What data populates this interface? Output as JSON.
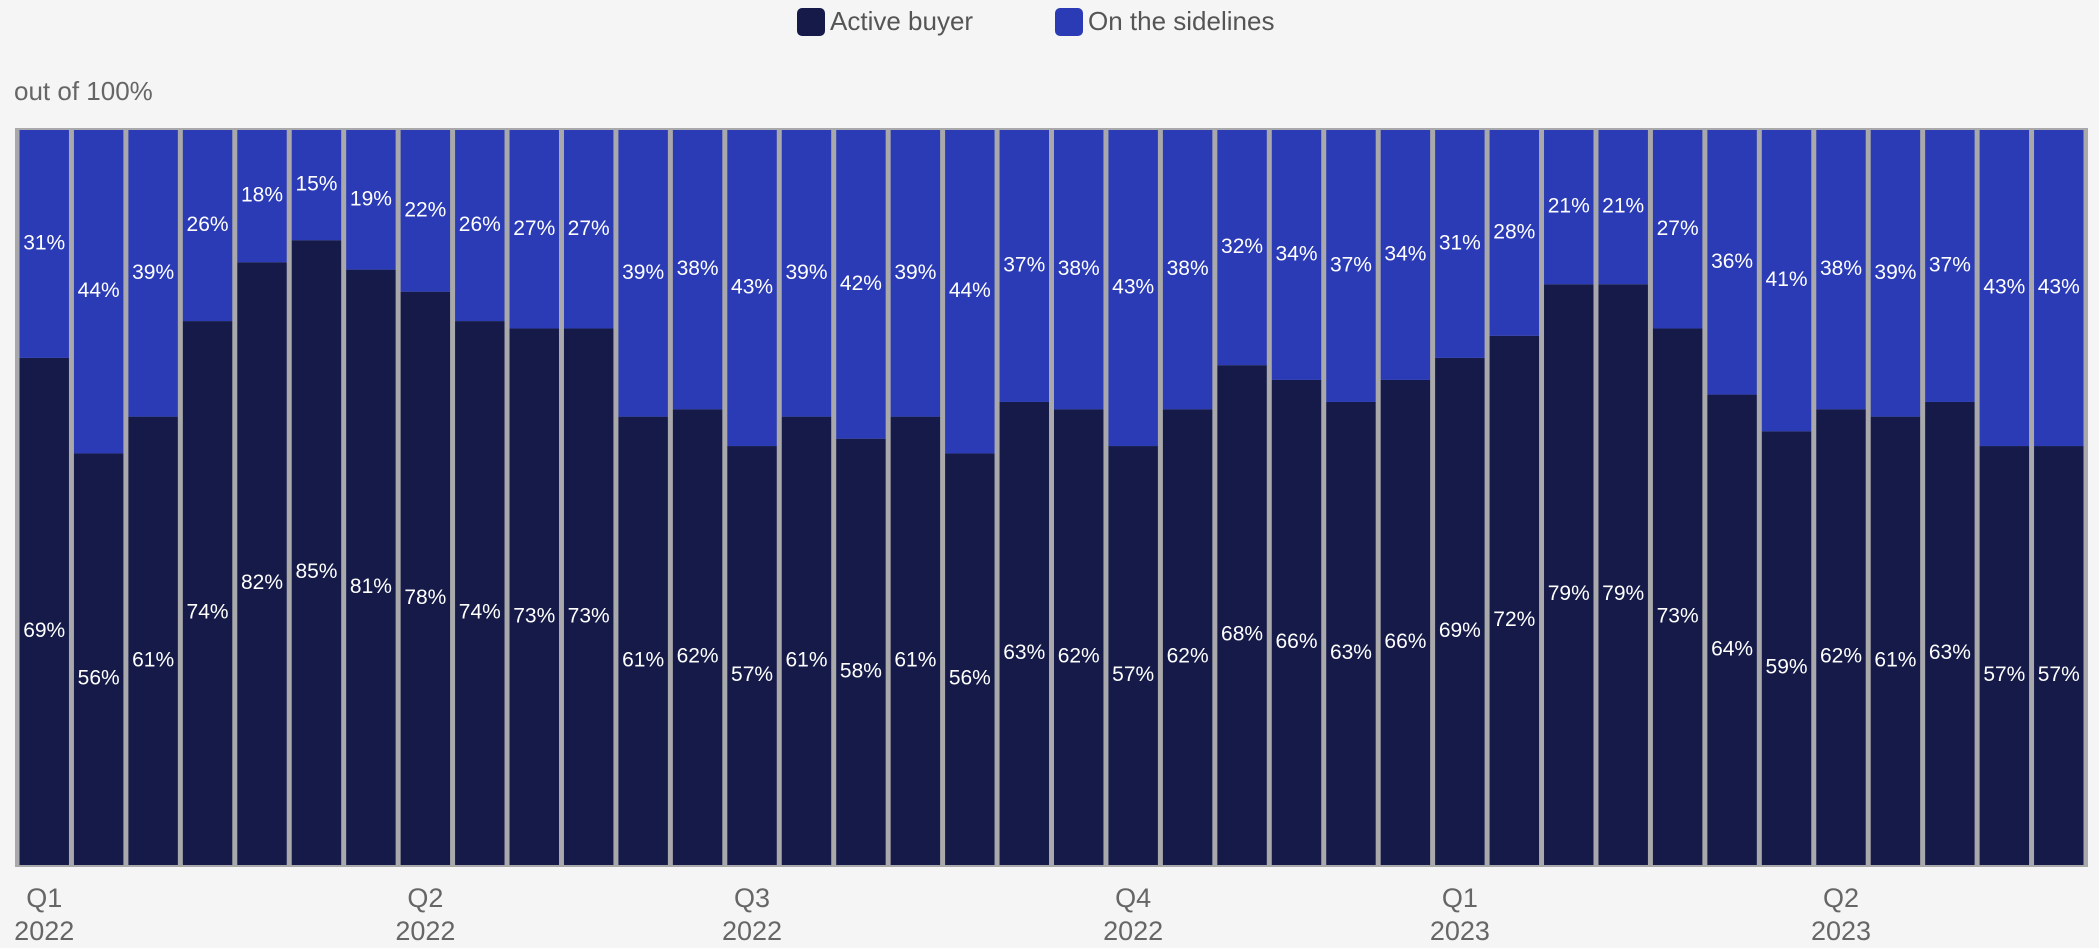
{
  "chart_data": {
    "type": "stacked-bar",
    "y_label": "out of 100%",
    "ylim": [
      0,
      100
    ],
    "categories": [
      "Q1 2022",
      null,
      null,
      null,
      null,
      null,
      null,
      "Q2 2022",
      null,
      null,
      null,
      null,
      null,
      "Q3 2022",
      null,
      null,
      null,
      null,
      null,
      null,
      "Q4 2022",
      null,
      null,
      null,
      null,
      null,
      "Q1 2023",
      null,
      null,
      null,
      null,
      null,
      null,
      "Q2 2023",
      null,
      null,
      null,
      null
    ],
    "legend": "top",
    "series": [
      {
        "name": "Active buyer",
        "color": "#151a48",
        "values": [
          69,
          56,
          61,
          74,
          82,
          85,
          81,
          78,
          74,
          73,
          73,
          61,
          62,
          57,
          61,
          58,
          61,
          56,
          63,
          62,
          57,
          62,
          68,
          66,
          63,
          66,
          69,
          72,
          79,
          79,
          73,
          64,
          59,
          62,
          61,
          63,
          57,
          57
        ],
        "value_labels": [
          "69%",
          "56%",
          "61%",
          "74%",
          "82%",
          "85%",
          "81%",
          "78%",
          "74%",
          "73%",
          "73%",
          "61%",
          "62%",
          "57%",
          "61%",
          "58%",
          "61%",
          "56%",
          "63%",
          "62%",
          "57%",
          "62%",
          "68%",
          "66%",
          "63%",
          "66%",
          "69%",
          "72%",
          "79%",
          "79%",
          "73%",
          "64%",
          "59%",
          "62%",
          "61%",
          "63%",
          "57%",
          "57%"
        ]
      },
      {
        "name": "On the sidelines",
        "color": "#2a3bb5",
        "values": [
          31,
          44,
          39,
          26,
          18,
          15,
          19,
          22,
          26,
          27,
          27,
          39,
          38,
          43,
          39,
          42,
          39,
          44,
          37,
          38,
          43,
          38,
          32,
          34,
          37,
          34,
          31,
          28,
          21,
          21,
          27,
          36,
          41,
          38,
          39,
          37,
          43,
          43
        ],
        "value_labels": [
          "31%",
          "44%",
          "39%",
          "26%",
          "18%",
          "15%",
          "19%",
          "22%",
          "26%",
          "27%",
          "27%",
          "39%",
          "38%",
          "43%",
          "39%",
          "42%",
          "39%",
          "44%",
          "37%",
          "38%",
          "43%",
          "38%",
          "32%",
          "34%",
          "37%",
          "34%",
          "31%",
          "28%",
          "21%",
          "21%",
          "27%",
          "36%",
          "41%",
          "38%",
          "39%",
          "37%",
          "43%",
          "43%"
        ]
      }
    ]
  }
}
